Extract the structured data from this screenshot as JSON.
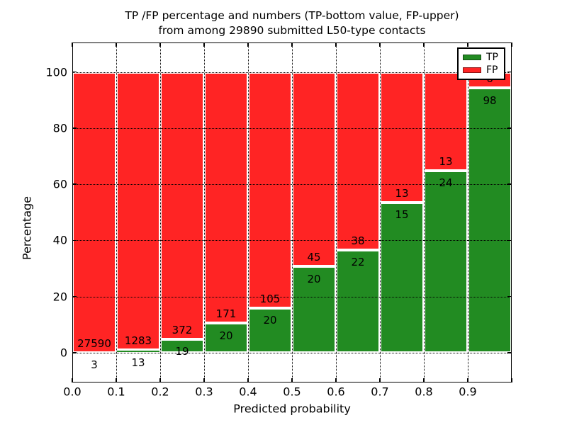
{
  "chart_data": {
    "type": "bar",
    "stacked": true,
    "normalized": "percent",
    "title_line1": "TP /FP percentage and numbers (TP-bottom value, FP-upper)",
    "title_line2": "from among 29890 submitted L50-type contacts",
    "xlabel": "Predicted probability",
    "ylabel": "Percentage",
    "total_contacts": 29890,
    "categories": [
      "0.0-0.1",
      "0.1-0.2",
      "0.2-0.3",
      "0.3-0.4",
      "0.4-0.5",
      "0.5-0.6",
      "0.6-0.7",
      "0.7-0.8",
      "0.8-0.9",
      "0.9-1.0"
    ],
    "x_tick_labels": [
      "0.0",
      "0.1",
      "0.2",
      "0.3",
      "0.4",
      "0.5",
      "0.6",
      "0.7",
      "0.8",
      "0.9"
    ],
    "y_ticks": [
      0,
      20,
      40,
      60,
      80,
      100
    ],
    "xlim": [
      0.0,
      1.0
    ],
    "ylim": [
      -10.6,
      110.5
    ],
    "bin_width": 0.1,
    "grid": "dotted",
    "legend_position": "upper right",
    "series": [
      {
        "name": "TP",
        "color": "#228b22",
        "counts": [
          3,
          13,
          19,
          20,
          20,
          20,
          22,
          15,
          24,
          98
        ]
      },
      {
        "name": "FP",
        "color": "#ff2424",
        "counts": [
          27590,
          1283,
          372,
          171,
          105,
          45,
          38,
          13,
          13,
          6
        ]
      }
    ],
    "legend": {
      "entries": [
        {
          "label": "TP",
          "color": "#228b22"
        },
        {
          "label": "FP",
          "color": "#ff2424"
        }
      ]
    },
    "colors": {
      "tp": "#228b22",
      "fp": "#ff2424",
      "bar_edge": "#ffffff",
      "grid": "#000000"
    }
  }
}
